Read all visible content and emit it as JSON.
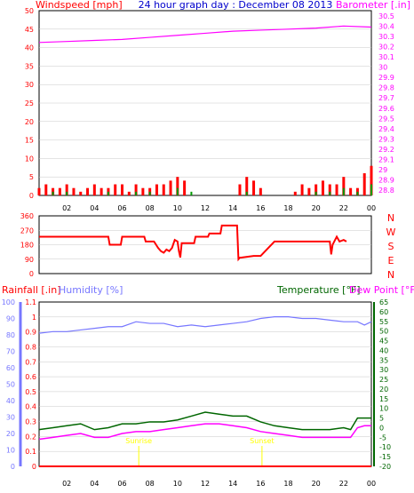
{
  "colors": {
    "wind": "#ff0000",
    "gust": "#009900",
    "baro": "#ff00ff",
    "rain": "#ff0000",
    "humidity": "#7777ff",
    "temp": "#006600",
    "dew": "#ff00ff",
    "title": "#0000cc",
    "axis": "#000000",
    "grid": "#c8c8c8",
    "sun": "#ffff00"
  },
  "x_ticks": [
    "02",
    "04",
    "06",
    "08",
    "10",
    "12",
    "14",
    "16",
    "18",
    "20",
    "22",
    "00"
  ],
  "chart_data": [
    {
      "type": "line",
      "title": "24 hour graph day : December 08 2013",
      "series": [
        {
          "name": "Windspeed [mph]",
          "unit": "mph",
          "axis": "left",
          "x": [
            0,
            0.5,
            1,
            1.5,
            2,
            2.5,
            3,
            3.5,
            4,
            4.5,
            5,
            5.5,
            6,
            6.5,
            7,
            7.5,
            8,
            8.5,
            9,
            9.5,
            10,
            10.5,
            11,
            11.5,
            12,
            12.5,
            13,
            13.5,
            14,
            14.5,
            15,
            15.5,
            16,
            16.5,
            17,
            17.5,
            18,
            18.5,
            19,
            19.5,
            20,
            20.5,
            21,
            21.5,
            22,
            22.5,
            23,
            23.5,
            24
          ],
          "values": [
            2,
            3,
            2,
            2,
            3,
            2,
            1,
            2,
            3,
            2,
            2,
            3,
            3,
            1,
            3,
            2,
            2,
            3,
            3,
            4,
            5,
            4,
            0,
            0,
            0,
            0,
            0,
            0,
            0,
            3,
            5,
            4,
            2,
            0,
            0,
            0,
            0,
            1,
            3,
            2,
            3,
            4,
            3,
            3,
            5,
            2,
            2,
            6,
            8
          ]
        },
        {
          "name": "Wind Gust [mph]",
          "axis": "left",
          "x": [
            0,
            1,
            2,
            3,
            4,
            5,
            6,
            7,
            8,
            9,
            10,
            11,
            12,
            13,
            14,
            15,
            16,
            17,
            18,
            19,
            20,
            21,
            22,
            23,
            24
          ],
          "values": [
            0,
            1,
            1,
            0,
            0,
            1,
            0,
            1,
            1,
            0,
            2,
            1,
            0,
            0,
            0,
            1,
            0,
            0,
            0,
            0,
            1,
            1,
            2,
            1,
            3
          ]
        },
        {
          "name": "Barometer [.in]",
          "unit": "in",
          "axis": "right",
          "x": [
            0,
            2,
            4,
            6,
            8,
            10,
            12,
            14,
            16,
            18,
            20,
            22,
            24
          ],
          "values": [
            30.24,
            30.25,
            30.26,
            30.27,
            30.29,
            30.31,
            30.33,
            30.35,
            30.36,
            30.37,
            30.38,
            30.4,
            30.39
          ]
        }
      ],
      "left_axis": {
        "label": "Windspeed [mph]",
        "ylim": [
          0,
          50
        ],
        "ticks": [
          "0",
          "5",
          "10",
          "15",
          "20",
          "25",
          "30",
          "35",
          "40",
          "45",
          "50"
        ]
      },
      "right_axis": {
        "label": "Barometer [.in]",
        "ylim": [
          28.75,
          30.55
        ],
        "ticks": [
          "28.8",
          "28.9",
          "29",
          "29.1",
          "29.2",
          "29.3",
          "29.4",
          "29.5",
          "29.6",
          "29.7",
          "29.8",
          "29.9",
          "30",
          "30.1",
          "30.2",
          "30.3",
          "30.4",
          "30.5"
        ]
      },
      "xlim": [
        0,
        24
      ]
    },
    {
      "type": "line",
      "series": [
        {
          "name": "Wind Direction",
          "unit": "deg",
          "x": [
            0,
            4,
            5,
            5.1,
            5.9,
            6,
            7.6,
            7.7,
            8.3,
            8.6,
            8.8,
            9,
            9.2,
            9.4,
            9.6,
            9.8,
            10.0,
            10.1,
            10.2,
            10.3,
            11.2,
            11.3,
            12.2,
            12.3,
            13.1,
            13.2,
            14.3,
            14.4,
            14.5,
            14.6,
            15.5,
            16,
            17,
            20,
            21,
            21.1,
            21.2,
            21.5,
            21.7,
            22,
            22.2
          ],
          "values": [
            230,
            230,
            230,
            180,
            180,
            230,
            230,
            200,
            200,
            160,
            140,
            130,
            150,
            140,
            160,
            210,
            200,
            140,
            100,
            190,
            190,
            230,
            230,
            250,
            250,
            300,
            300,
            90,
            100,
            100,
            110,
            110,
            200,
            200,
            200,
            120,
            180,
            230,
            200,
            210,
            200
          ]
        }
      ],
      "left_axis": {
        "ylim": [
          0,
          360
        ],
        "ticks": [
          "0",
          "90",
          "180",
          "270",
          "360"
        ]
      },
      "right_axis": {
        "ticks": [
          "N",
          "W",
          "S",
          "E",
          "N"
        ]
      },
      "xlim": [
        0,
        24
      ]
    },
    {
      "type": "line",
      "series": [
        {
          "name": "Rainfall [.in]",
          "axis": "rain",
          "x": [
            0,
            24
          ],
          "values": [
            0,
            0
          ]
        },
        {
          "name": "Humidity [%]",
          "axis": "humidity",
          "x": [
            0,
            1,
            2,
            3,
            4,
            5,
            6,
            7,
            8,
            9,
            10,
            11,
            12,
            13,
            14,
            15,
            16,
            17,
            18,
            19,
            20,
            21,
            22,
            23,
            23.5,
            24
          ],
          "values": [
            81,
            82,
            82,
            83,
            84,
            85,
            85,
            88,
            87,
            87,
            85,
            86,
            85,
            86,
            87,
            88,
            90,
            91,
            91,
            90,
            90,
            89,
            88,
            88,
            86,
            88
          ]
        },
        {
          "name": "Temperature [°F]",
          "axis": "temp",
          "x": [
            0,
            1,
            2,
            3,
            4,
            5,
            6,
            7,
            8,
            9,
            10,
            11,
            12,
            13,
            14,
            15,
            16,
            17,
            18,
            19,
            20,
            21,
            22,
            22.5,
            23,
            23.5,
            24
          ],
          "values": [
            -1,
            0,
            1,
            2,
            -1,
            0,
            2,
            2,
            3,
            3,
            4,
            6,
            8,
            7,
            6,
            6,
            3,
            1,
            0,
            -1,
            -1,
            -1,
            0,
            -1,
            5,
            5,
            5
          ]
        },
        {
          "name": "Dew Point [°F]",
          "axis": "temp",
          "x": [
            0,
            1,
            2,
            3,
            4,
            5,
            6,
            7,
            8,
            9,
            10,
            11,
            12,
            13,
            14,
            15,
            16,
            17,
            18,
            19,
            20,
            21,
            22,
            22.5,
            23,
            23.5,
            24
          ],
          "values": [
            -6,
            -5,
            -4,
            -3,
            -5,
            -5,
            -3,
            -2,
            -2,
            -1,
            0,
            1,
            2,
            2,
            1,
            0,
            -2,
            -3,
            -4,
            -5,
            -5,
            -5,
            -5,
            -5,
            0,
            1,
            1
          ]
        }
      ],
      "axes": {
        "rain": {
          "label": "Rainfall [.in]",
          "ylim": [
            0,
            1.1
          ],
          "ticks": [
            "0",
            "0.1",
            "0.2",
            "0.3",
            "0.4",
            "0.5",
            "0.6",
            "0.7",
            "0.8",
            "0.9",
            "1",
            "1.1"
          ]
        },
        "humidity": {
          "label": "Humidity [%]",
          "ylim": [
            0,
            100
          ],
          "ticks": [
            "0",
            "10",
            "20",
            "30",
            "40",
            "50",
            "60",
            "70",
            "80",
            "90",
            "100"
          ]
        },
        "temp": {
          "label": "Temperature [°F]",
          "ylim": [
            -20,
            65
          ],
          "ticks": [
            "-20",
            "-15",
            "-10",
            "-5",
            "0",
            "5",
            "10",
            "15",
            "20",
            "25",
            "30",
            "35",
            "40",
            "45",
            "50",
            "55",
            "60",
            "65"
          ]
        },
        "dew_label": "Dew Point [°F]"
      },
      "annotations": [
        {
          "text": "Sunrise",
          "x": 7.2
        },
        {
          "text": "Sunset",
          "x": 16.1
        }
      ],
      "xlim": [
        0,
        24
      ]
    }
  ]
}
